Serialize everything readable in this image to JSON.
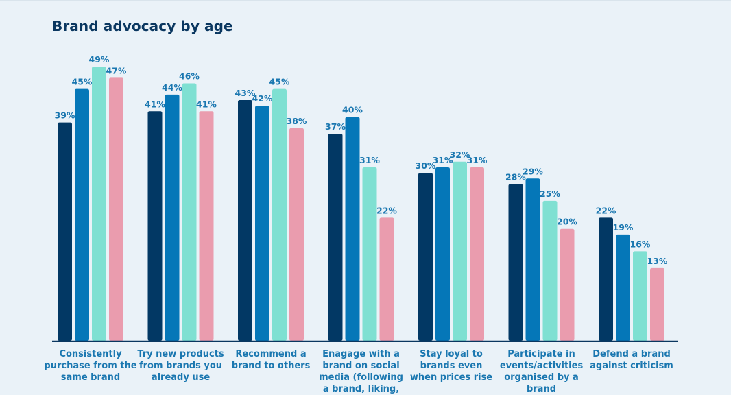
{
  "chart_data": {
    "type": "bar",
    "title": "Brand advocacy by age",
    "xlabel": "",
    "ylabel": "",
    "ylim": [
      0,
      52
    ],
    "grid": false,
    "legend": "none",
    "categories": [
      [
        "Consistently",
        "purchase from the",
        "same brand"
      ],
      [
        "Try new products",
        "from brands you",
        "already use"
      ],
      [
        "Recommend a",
        "brand to others"
      ],
      [
        "Enagage  with a",
        "brand on social",
        "media (following",
        "a brand, liking,"
      ],
      [
        "Stay loyal to",
        "brands even",
        "when prices rise"
      ],
      [
        "Participate in",
        "events/activities",
        "organised by a",
        "brand"
      ],
      [
        "Defend a brand",
        "against criticism"
      ]
    ],
    "series": [
      {
        "color": "#023864",
        "values": [
          39,
          41,
          43,
          37,
          30,
          28,
          22
        ]
      },
      {
        "color": "#0577b8",
        "values": [
          45,
          44,
          42,
          40,
          31,
          29,
          19
        ]
      },
      {
        "color": "#7fe0d2",
        "values": [
          49,
          46,
          45,
          31,
          32,
          25,
          16
        ]
      },
      {
        "color": "#ea9cae",
        "values": [
          47,
          41,
          38,
          22,
          31,
          20,
          13
        ]
      }
    ],
    "value_suffix": "%",
    "axis_color": "#0a3760"
  }
}
